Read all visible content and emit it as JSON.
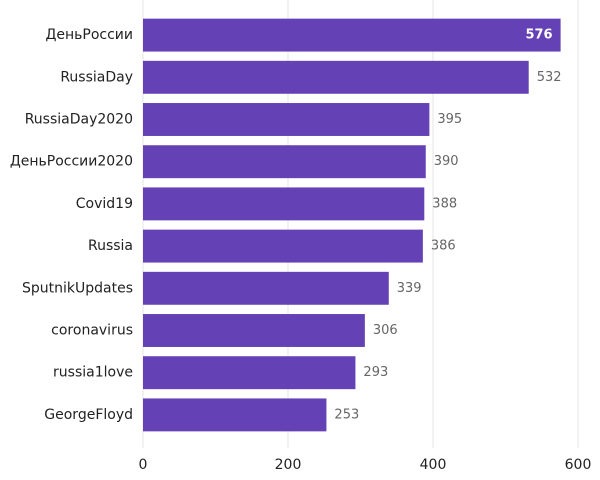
{
  "chart_data": {
    "type": "bar",
    "orientation": "horizontal",
    "categories": [
      "ДеньРоссии",
      "RussiaDay",
      "RussiaDay2020",
      "ДеньРоссии2020",
      "Covid19",
      "Russia",
      "SputnikUpdates",
      "coronavirus",
      "russia1love",
      "GeorgeFloyd"
    ],
    "values": [
      576,
      532,
      395,
      390,
      388,
      386,
      339,
      306,
      293,
      253
    ],
    "color": "#6441b4",
    "xlim": [
      0,
      600
    ],
    "xticks": [
      0,
      200,
      400,
      600
    ],
    "grid": true
  }
}
